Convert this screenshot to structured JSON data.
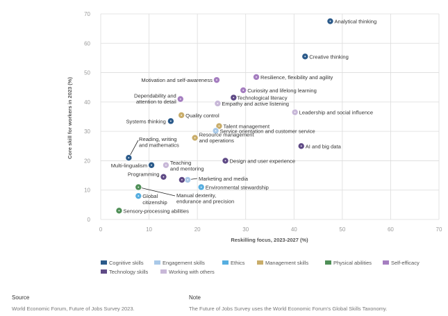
{
  "chart_data": {
    "type": "scatter",
    "xlabel": "Reskilling focus, 2023-2027 (%)",
    "ylabel": "Core skill for workers in 2023 (%)",
    "xlim": [
      0,
      70
    ],
    "ylim": [
      0,
      70
    ],
    "x_ticks": [
      "0",
      "10",
      "20",
      "30",
      "40",
      "50",
      "60",
      "70"
    ],
    "y_ticks": [
      "0",
      "10",
      "20",
      "30",
      "40",
      "50",
      "60",
      "70"
    ],
    "grid": true,
    "legend_position": "bottom",
    "categories": [
      {
        "name": "Cognitive skills",
        "color": "#2b5a8a"
      },
      {
        "name": "Engagement skills",
        "color": "#a9c9e8"
      },
      {
        "name": "Ethics",
        "color": "#56aee0"
      },
      {
        "name": "Management skills",
        "color": "#c9ad6a"
      },
      {
        "name": "Physical abilities",
        "color": "#4f8f57"
      },
      {
        "name": "Self-efficacy",
        "color": "#a57ec0"
      },
      {
        "name": "Technology skills",
        "color": "#5f4a86"
      },
      {
        "name": "Working with others",
        "color": "#c8b8d8"
      }
    ],
    "points": [
      {
        "label": "Analytical thinking",
        "x": 47.5,
        "y": 67.5,
        "category": "Cognitive skills"
      },
      {
        "label": "Creative thinking",
        "x": 42.3,
        "y": 55.5,
        "category": "Cognitive skills"
      },
      {
        "label": "Resilience, flexibility and agility",
        "x": 32.2,
        "y": 48.5,
        "category": "Self-efficacy"
      },
      {
        "label": "Motivation and self-awareness",
        "x": 24.0,
        "y": 47.5,
        "category": "Self-efficacy"
      },
      {
        "label": "Curiosity and lifelong learning",
        "x": 29.5,
        "y": 44.0,
        "category": "Self-efficacy"
      },
      {
        "label": "Technological literacy",
        "x": 27.5,
        "y": 41.5,
        "category": "Technology skills"
      },
      {
        "label": "Dependability and attention to detail",
        "x": 16.5,
        "y": 41.0,
        "category": "Self-efficacy"
      },
      {
        "label": "Empathy and active listening",
        "x": 24.2,
        "y": 39.5,
        "category": "Working with others"
      },
      {
        "label": "Leadership and social influence",
        "x": 40.2,
        "y": 36.5,
        "category": "Working with others"
      },
      {
        "label": "Quality control",
        "x": 16.7,
        "y": 35.5,
        "category": "Management skills"
      },
      {
        "label": "Systems thinking",
        "x": 14.5,
        "y": 33.5,
        "category": "Cognitive skills"
      },
      {
        "label": "Talent management",
        "x": 24.5,
        "y": 31.8,
        "category": "Management skills"
      },
      {
        "label": "Service orientation and customer service",
        "x": 23.8,
        "y": 30.2,
        "category": "Engagement skills"
      },
      {
        "label": "Resource management and operations",
        "x": 19.5,
        "y": 27.8,
        "category": "Management skills"
      },
      {
        "label": "AI and big data",
        "x": 41.5,
        "y": 25.0,
        "category": "Technology skills"
      },
      {
        "label": "Reading, writing and mathematics",
        "x": 5.8,
        "y": 21.0,
        "category": "Cognitive skills"
      },
      {
        "label": "Design and user experience",
        "x": 25.8,
        "y": 20.0,
        "category": "Technology skills"
      },
      {
        "label": "Multi-lingualism",
        "x": 10.5,
        "y": 18.5,
        "category": "Cognitive skills"
      },
      {
        "label": "Teaching and mentoring",
        "x": 13.5,
        "y": 18.5,
        "category": "Working with others"
      },
      {
        "label": "Programming",
        "x": 13.0,
        "y": 14.5,
        "category": "Technology skills"
      },
      {
        "label": "Marketing and media",
        "x": 18.0,
        "y": 13.5,
        "category": "Engagement skills"
      },
      {
        "label": "Manual dexterity, endurance and precision",
        "x": 16.8,
        "y": 13.5,
        "category": "Technology skills"
      },
      {
        "label": "Environmental stewardship",
        "x": 20.8,
        "y": 11.0,
        "category": "Ethics"
      },
      {
        "label": "Global citizenship",
        "x": 7.8,
        "y": 8.0,
        "category": "Ethics"
      },
      {
        "label": "Physical abilities point",
        "x": 7.8,
        "y": 11.0,
        "category": "Physical abilities"
      },
      {
        "label": "Sensory-processing abilities",
        "x": 3.8,
        "y": 3.0,
        "category": "Physical abilities"
      }
    ]
  },
  "footer": {
    "source_heading": "Source",
    "source_text": "World Economic Forum, Future of Jobs Survey 2023.",
    "note_heading": "Note",
    "note_text": "The Future of Jobs Survey uses the World Economic Forum's Global Skills Taxonomy."
  }
}
